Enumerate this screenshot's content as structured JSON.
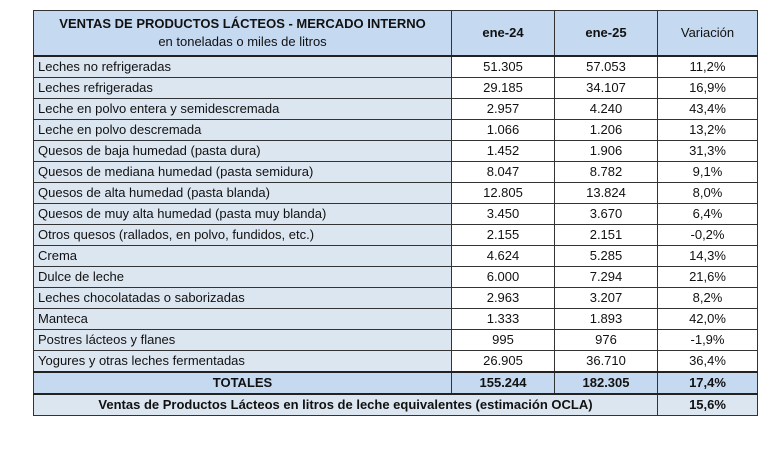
{
  "header": {
    "title": "VENTAS DE PRODUCTOS LÁCTEOS - MERCADO INTERNO",
    "subtitle": "en toneladas o miles de litros",
    "col1": "ene-24",
    "col2": "ene-25",
    "col3": "Variación"
  },
  "rows": [
    {
      "label": "Leches no refrigeradas",
      "v24": "51.305",
      "v25": "57.053",
      "var": "11,2%"
    },
    {
      "label": "Leches refrigeradas",
      "v24": "29.185",
      "v25": "34.107",
      "var": "16,9%"
    },
    {
      "label": "Leche en polvo entera y semidescremada",
      "v24": "2.957",
      "v25": "4.240",
      "var": "43,4%"
    },
    {
      "label": "Leche en polvo descremada",
      "v24": "1.066",
      "v25": "1.206",
      "var": "13,2%"
    },
    {
      "label": "Quesos de baja humedad (pasta dura)",
      "v24": "1.452",
      "v25": "1.906",
      "var": "31,3%"
    },
    {
      "label": "Quesos de mediana humedad (pasta semidura)",
      "v24": "8.047",
      "v25": "8.782",
      "var": "9,1%"
    },
    {
      "label": "Quesos de alta humedad (pasta blanda)",
      "v24": "12.805",
      "v25": "13.824",
      "var": "8,0%"
    },
    {
      "label": "Quesos de muy alta humedad (pasta muy blanda)",
      "v24": "3.450",
      "v25": "3.670",
      "var": "6,4%"
    },
    {
      "label": "Otros quesos (rallados, en polvo, fundidos, etc.)",
      "v24": "2.155",
      "v25": "2.151",
      "var": "-0,2%"
    },
    {
      "label": "Crema",
      "v24": "4.624",
      "v25": "5.285",
      "var": "14,3%"
    },
    {
      "label": "Dulce de leche",
      "v24": "6.000",
      "v25": "7.294",
      "var": "21,6%"
    },
    {
      "label": "Leches chocolatadas o saborizadas",
      "v24": "2.963",
      "v25": "3.207",
      "var": "8,2%"
    },
    {
      "label": "Manteca",
      "v24": "1.333",
      "v25": "1.893",
      "var": "42,0%"
    },
    {
      "label": "Postres lácteos y flanes",
      "v24": "995",
      "v25": "976",
      "var": "-1,9%"
    },
    {
      "label": "Yogures y otras leches fermentadas",
      "v24": "26.905",
      "v25": "36.710",
      "var": "36,4%"
    }
  ],
  "totals": {
    "label": "TOTALES",
    "v24": "155.244",
    "v25": "182.305",
    "var": "17,4%"
  },
  "ocla": {
    "label": "Ventas de Productos Lácteos en litros de leche equivalentes (estimación OCLA)",
    "var": "15,6%"
  }
}
